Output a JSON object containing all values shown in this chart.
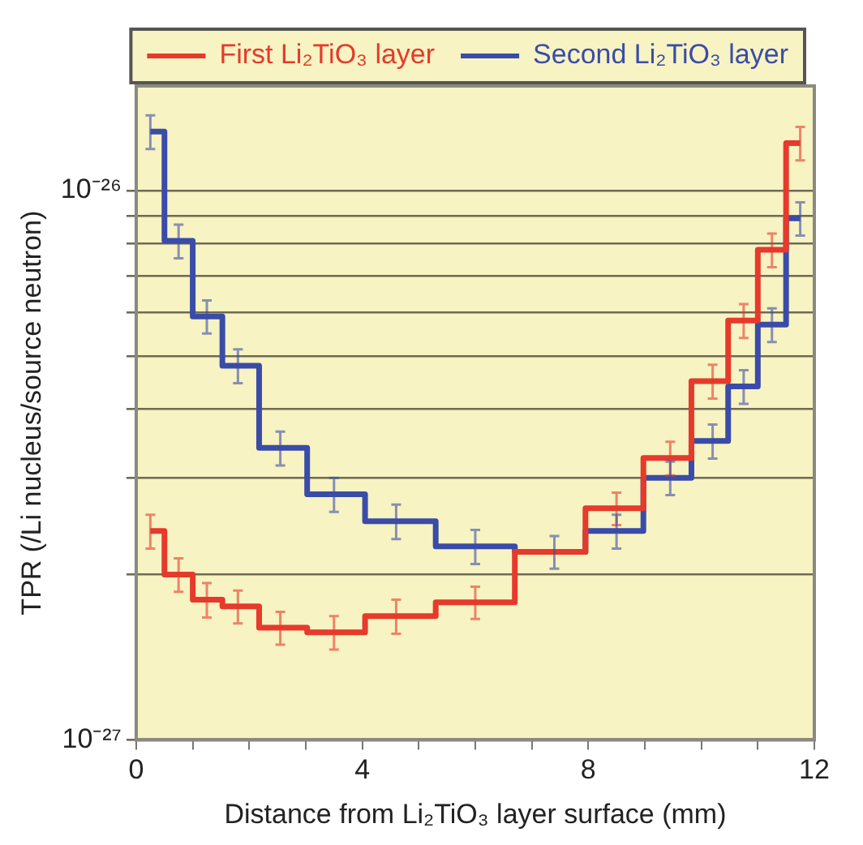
{
  "chart_data": {
    "type": "step",
    "xlabel": "Distance from Li₂TiO₃ layer surface (mm)",
    "ylabel": "TPR (/Li nucleus/source neutron)",
    "x": [
      0.25,
      0.75,
      1.25,
      1.8,
      2.55,
      3.5,
      4.6,
      6.0,
      7.4,
      8.5,
      9.45,
      10.2,
      10.75,
      11.25,
      11.75
    ],
    "series": [
      {
        "name": "First Li₂TiO₃ layer",
        "color": "#e53a2c",
        "values": [
          2.4e-27,
          2e-27,
          1.8e-27,
          1.75e-27,
          1.6e-27,
          1.57e-27,
          1.68e-27,
          1.78e-27,
          2.2e-27,
          2.64e-27,
          3.26e-27,
          4.5e-27,
          5.8e-27,
          7.8e-27,
          1.22e-26
        ],
        "errors": [
          1.7e-28,
          1.4e-28,
          1.3e-28,
          1.2e-28,
          1.1e-28,
          1.1e-28,
          1.2e-28,
          1.2e-28,
          null,
          1.8e-28,
          2.3e-28,
          3.2e-28,
          4.1e-28,
          5.5e-28,
          8.5e-28
        ]
      },
      {
        "name": "Second Li₂TiO₃ layer",
        "color": "#3a4ca8",
        "values": [
          1.28e-26,
          8.1e-27,
          5.9e-27,
          4.8e-27,
          3.4e-27,
          2.8e-27,
          2.5e-27,
          2.25e-27,
          2.2e-27,
          2.4e-27,
          3e-27,
          3.5e-27,
          4.4e-27,
          5.7e-27,
          8.9e-27
        ],
        "errors": [
          9e-28,
          5.7e-28,
          4.1e-28,
          3.4e-28,
          2.4e-28,
          2e-28,
          1.8e-28,
          1.6e-28,
          1.5e-28,
          1.7e-28,
          2.1e-28,
          2.5e-28,
          3.1e-28,
          4e-28,
          6.2e-28
        ]
      }
    ],
    "xlim": [
      0,
      12
    ],
    "xticks": [
      0,
      {
        "value": 1,
        "label": null
      },
      {
        "value": 2,
        "label": null
      },
      {
        "value": 3,
        "label": null
      },
      4,
      {
        "value": 5,
        "label": null
      },
      {
        "value": 6,
        "label": null
      },
      {
        "value": 7,
        "label": null
      },
      8,
      {
        "value": 9,
        "label": null
      },
      {
        "value": 10,
        "label": null
      },
      {
        "value": 11,
        "label": null
      },
      12
    ],
    "ylim": [
      1e-27,
      1.55e-26
    ],
    "yticks": [
      {
        "value": 1e-27,
        "label": "10⁻²⁷"
      },
      {
        "value": 2e-27,
        "label": null
      },
      {
        "value": 3e-27,
        "label": null
      },
      {
        "value": 4e-27,
        "label": null
      },
      {
        "value": 5e-27,
        "label": null
      },
      {
        "value": 6e-27,
        "label": null
      },
      {
        "value": 7e-27,
        "label": null
      },
      {
        "value": 8e-27,
        "label": null
      },
      {
        "value": 9e-27,
        "label": null
      },
      {
        "value": 1e-26,
        "label": "10⁻²⁶"
      }
    ],
    "log": "y",
    "grid": "y",
    "legend": "top right",
    "line_style": "solid"
  }
}
